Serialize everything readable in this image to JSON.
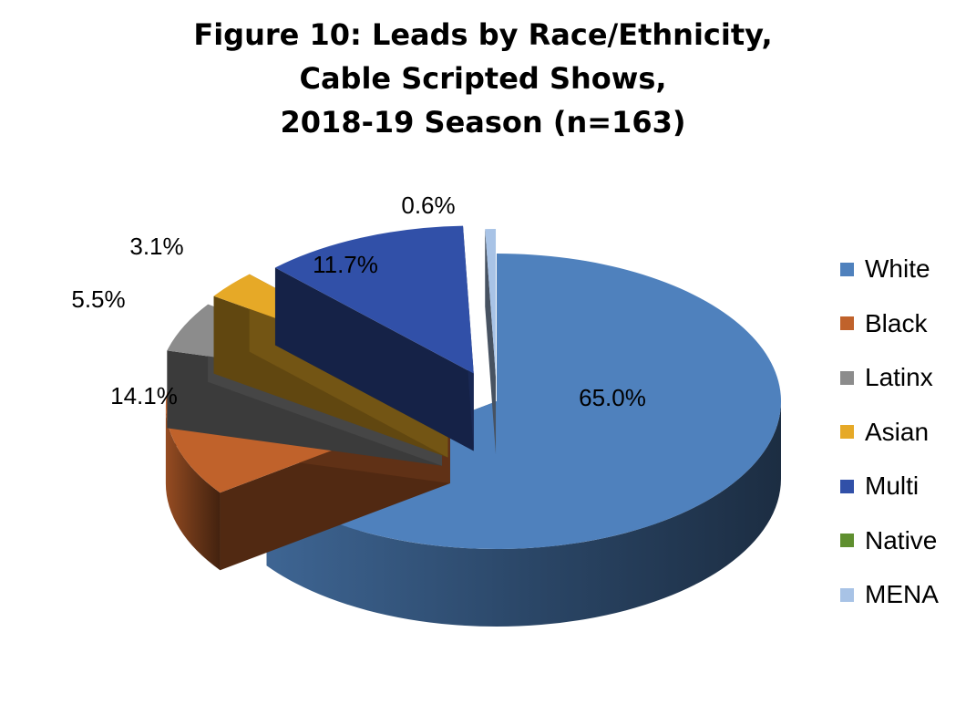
{
  "chart_data": {
    "type": "pie",
    "title_lines": [
      "Figure 10:  Leads by Race/Ethnicity,",
      "Cable Scripted Shows,",
      "2018-19 Season (n=163)"
    ],
    "categories": [
      "White",
      "Black",
      "Latinx",
      "Asian",
      "Multi",
      "Native",
      "MENA"
    ],
    "values": [
      65.0,
      14.1,
      5.5,
      3.1,
      11.7,
      0.0,
      0.6
    ],
    "data_labels": [
      "65.0%",
      "14.1%",
      "5.5%",
      "3.1%",
      "11.7%",
      "",
      "0.6%"
    ],
    "colors": [
      "#4f81bd",
      "#c0622b",
      "#8c8c8c",
      "#e6a927",
      "#3150a8",
      "#5f8f2f",
      "#a8c3e6"
    ],
    "legend_position": "right",
    "exploded": true,
    "style": "3d"
  }
}
